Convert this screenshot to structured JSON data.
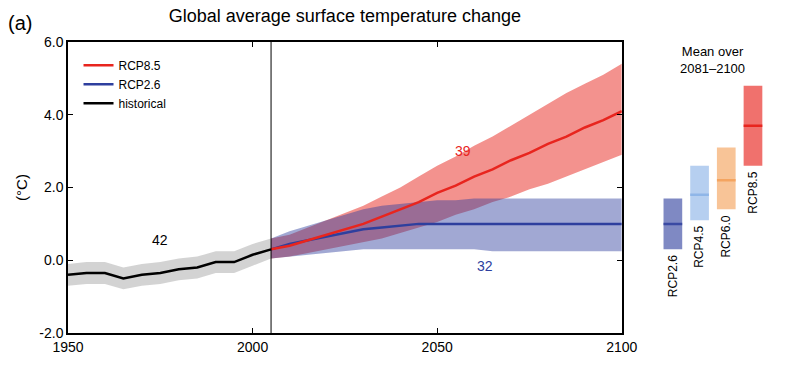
{
  "chart_data": {
    "type": "line",
    "title": "Global average surface temperature change",
    "panel_label": "(a)",
    "y_label": "(°C)",
    "xlim": [
      1950,
      2100
    ],
    "xticks": [
      1950,
      2000,
      2050,
      2100
    ],
    "ylim": [
      -2,
      6
    ],
    "yticks": [
      {
        "value": -2,
        "label": "-2.0"
      },
      {
        "value": 0,
        "label": "0.0"
      },
      {
        "value": 2,
        "label": "2.0"
      },
      {
        "value": 4,
        "label": "4.0"
      },
      {
        "value": 6,
        "label": "6.0"
      }
    ],
    "grid": false,
    "legend": "upper left",
    "divider_x": 2005,
    "x": [
      1950,
      1955,
      1960,
      1965,
      1970,
      1975,
      1980,
      1985,
      1990,
      1995,
      2000,
      2005,
      2010,
      2015,
      2020,
      2025,
      2030,
      2035,
      2040,
      2045,
      2050,
      2055,
      2060,
      2065,
      2070,
      2075,
      2080,
      2085,
      2090,
      2095,
      2100
    ],
    "series": [
      {
        "name": "historical",
        "color": "#000000",
        "values": [
          -0.4,
          -0.35,
          -0.35,
          -0.5,
          -0.4,
          -0.35,
          -0.25,
          -0.2,
          -0.05,
          -0.05,
          0.15,
          0.3,
          null,
          null,
          null,
          null,
          null,
          null,
          null,
          null,
          null,
          null,
          null,
          null,
          null,
          null,
          null,
          null,
          null,
          null,
          null
        ],
        "lower": [
          -0.7,
          -0.65,
          -0.65,
          -0.8,
          -0.7,
          -0.65,
          -0.55,
          -0.5,
          -0.35,
          -0.35,
          -0.15,
          0.05,
          null,
          null,
          null,
          null,
          null,
          null,
          null,
          null,
          null,
          null,
          null,
          null,
          null,
          null,
          null,
          null,
          null,
          null,
          null
        ],
        "upper": [
          -0.1,
          -0.05,
          -0.05,
          -0.2,
          -0.1,
          -0.05,
          0.05,
          0.1,
          0.25,
          0.25,
          0.45,
          0.6,
          null,
          null,
          null,
          null,
          null,
          null,
          null,
          null,
          null,
          null,
          null,
          null,
          null,
          null,
          null,
          null,
          null,
          null,
          null
        ]
      },
      {
        "name": "RCP2.6",
        "color": "#2e3f9e",
        "values": [
          null,
          null,
          null,
          null,
          null,
          null,
          null,
          null,
          null,
          null,
          null,
          0.3,
          0.45,
          0.55,
          0.65,
          0.75,
          0.85,
          0.9,
          0.95,
          1.0,
          1.0,
          1.0,
          1.0,
          1.0,
          1.0,
          1.0,
          1.0,
          1.0,
          1.0,
          1.0,
          1.0
        ],
        "lower": [
          null,
          null,
          null,
          null,
          null,
          null,
          null,
          null,
          null,
          null,
          null,
          0.05,
          0.1,
          0.15,
          0.2,
          0.25,
          0.3,
          0.3,
          0.3,
          0.3,
          0.3,
          0.3,
          0.3,
          0.25,
          0.25,
          0.25,
          0.25,
          0.25,
          0.25,
          0.25,
          0.25
        ],
        "upper": [
          null,
          null,
          null,
          null,
          null,
          null,
          null,
          null,
          null,
          null,
          null,
          0.6,
          0.8,
          0.95,
          1.1,
          1.25,
          1.4,
          1.5,
          1.55,
          1.6,
          1.65,
          1.65,
          1.7,
          1.7,
          1.7,
          1.7,
          1.7,
          1.7,
          1.7,
          1.7,
          1.7
        ]
      },
      {
        "name": "RCP8.5",
        "color": "#e8251e",
        "values": [
          null,
          null,
          null,
          null,
          null,
          null,
          null,
          null,
          null,
          null,
          null,
          0.3,
          0.4,
          0.55,
          0.7,
          0.85,
          1.0,
          1.2,
          1.4,
          1.6,
          1.85,
          2.05,
          2.3,
          2.5,
          2.75,
          2.95,
          3.2,
          3.4,
          3.65,
          3.85,
          4.1
        ],
        "lower": [
          null,
          null,
          null,
          null,
          null,
          null,
          null,
          null,
          null,
          null,
          null,
          0.05,
          0.1,
          0.2,
          0.3,
          0.4,
          0.5,
          0.6,
          0.75,
          0.9,
          1.05,
          1.25,
          1.4,
          1.6,
          1.75,
          1.95,
          2.1,
          2.3,
          2.5,
          2.7,
          2.9
        ],
        "upper": [
          null,
          null,
          null,
          null,
          null,
          null,
          null,
          null,
          null,
          null,
          null,
          0.6,
          0.7,
          0.9,
          1.1,
          1.3,
          1.5,
          1.75,
          2.0,
          2.3,
          2.6,
          2.85,
          3.15,
          3.4,
          3.7,
          4.0,
          4.3,
          4.6,
          4.85,
          5.1,
          5.4
        ]
      }
    ],
    "annotations": [
      {
        "text": "42",
        "x": 1975,
        "y": 0.55,
        "color": "#000000"
      },
      {
        "text": "39",
        "x": 2057,
        "y": 3.0,
        "color": "#e8251e"
      },
      {
        "text": "32",
        "x": 2063,
        "y": -0.15,
        "color": "#2e3f9e"
      }
    ],
    "inset": {
      "title": [
        "Mean over",
        "2081–2100"
      ],
      "categories": [
        "RCP2.6",
        "RCP4.5",
        "RCP6.0",
        "RCP8.5"
      ],
      "values": [
        1.0,
        1.8,
        2.2,
        3.7
      ],
      "low": [
        0.3,
        1.1,
        1.4,
        2.6
      ],
      "high": [
        1.7,
        2.6,
        3.1,
        4.8
      ],
      "colors": [
        "#3a4aa3",
        "#8fb6e8",
        "#f4a460",
        "#e8251e"
      ]
    }
  }
}
